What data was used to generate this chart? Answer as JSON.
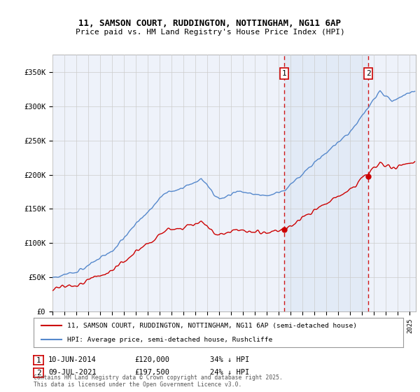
{
  "title_line1": "11, SAMSON COURT, RUDDINGTON, NOTTINGHAM, NG11 6AP",
  "title_line2": "Price paid vs. HM Land Registry's House Price Index (HPI)",
  "bg_color": "#ffffff",
  "plot_bg_color": "#eef2fa",
  "shade_color": "#dde8f5",
  "grid_color": "#cccccc",
  "hpi_color": "#5588cc",
  "price_color": "#cc0000",
  "dashed_color": "#cc0000",
  "annotation_box_color": "#cc0000",
  "purchase1_date_label": "10-JUN-2014",
  "purchase1_price": 120000,
  "purchase1_price_label": "£120,000",
  "purchase1_pct": "34% ↓ HPI",
  "purchase1_year": 2014.44,
  "purchase2_date_label": "09-JUL-2021",
  "purchase2_price": 197500,
  "purchase2_price_label": "£197,500",
  "purchase2_pct": "24% ↓ HPI",
  "purchase2_year": 2021.52,
  "legend_label1": "11, SAMSON COURT, RUDDINGTON, NOTTINGHAM, NG11 6AP (semi-detached house)",
  "legend_label2": "HPI: Average price, semi-detached house, Rushcliffe",
  "footer": "Contains HM Land Registry data © Crown copyright and database right 2025.\nThis data is licensed under the Open Government Licence v3.0.",
  "ylim": [
    0,
    375000
  ],
  "xlim_start": 1995.0,
  "xlim_end": 2025.5
}
